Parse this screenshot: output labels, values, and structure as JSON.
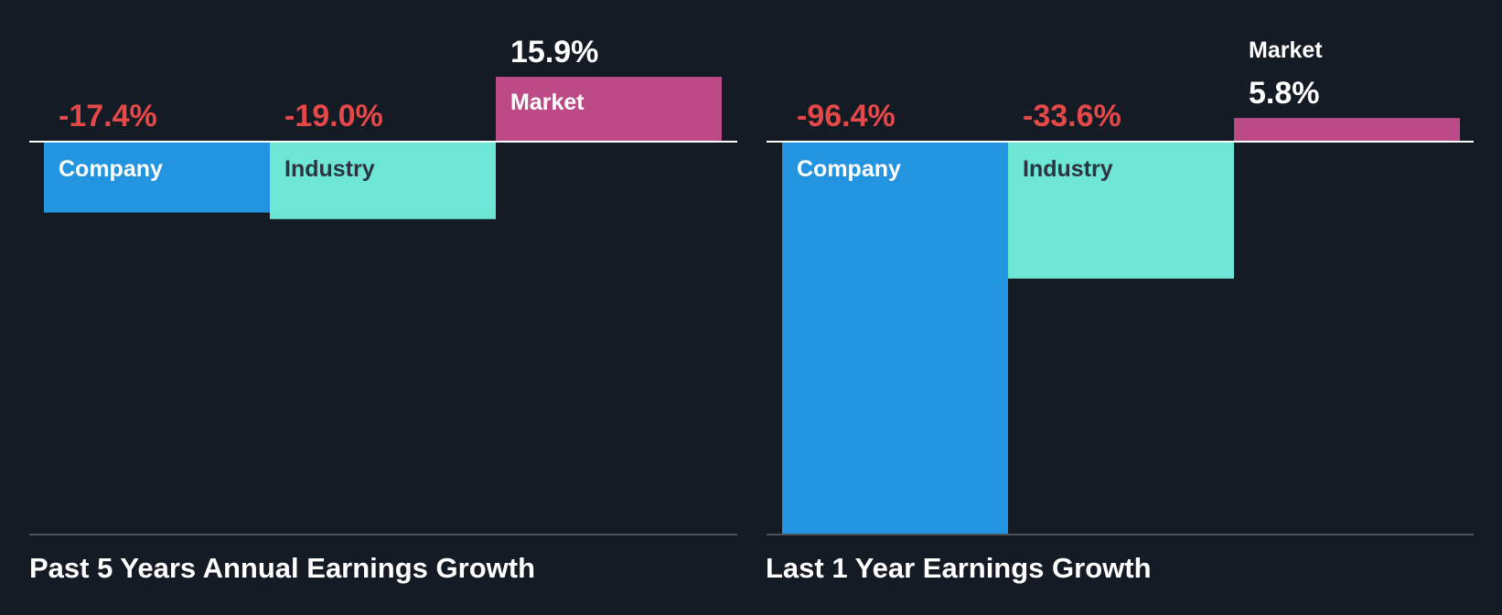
{
  "chart_data": [
    {
      "type": "bar",
      "title": "Past 5 Years Annual Earnings Growth",
      "categories": [
        "Company",
        "Industry",
        "Market"
      ],
      "values": [
        -17.4,
        -19.0,
        15.9
      ],
      "value_labels": [
        "-17.4%",
        "-19.0%",
        "15.9%"
      ],
      "colors": [
        "#2394e0",
        "#6de6d5",
        "#bb4a87"
      ],
      "label_colors": [
        "#ffffff",
        "#2b3440",
        "#ffffff"
      ],
      "negative_value_color": "#e54848",
      "positive_value_color": "#ffffff",
      "ylim": [
        -100,
        16
      ]
    },
    {
      "type": "bar",
      "title": "Last 1 Year Earnings Growth",
      "categories": [
        "Company",
        "Industry",
        "Market"
      ],
      "values": [
        -96.4,
        -33.6,
        5.8
      ],
      "value_labels": [
        "-96.4%",
        "-33.6%",
        "5.8%"
      ],
      "colors": [
        "#2394e0",
        "#6de6d5",
        "#bb4a87"
      ],
      "label_colors": [
        "#ffffff",
        "#2b3440",
        "#ffffff"
      ],
      "negative_value_color": "#e54848",
      "positive_value_color": "#ffffff",
      "ylim": [
        -100,
        16
      ]
    }
  ]
}
